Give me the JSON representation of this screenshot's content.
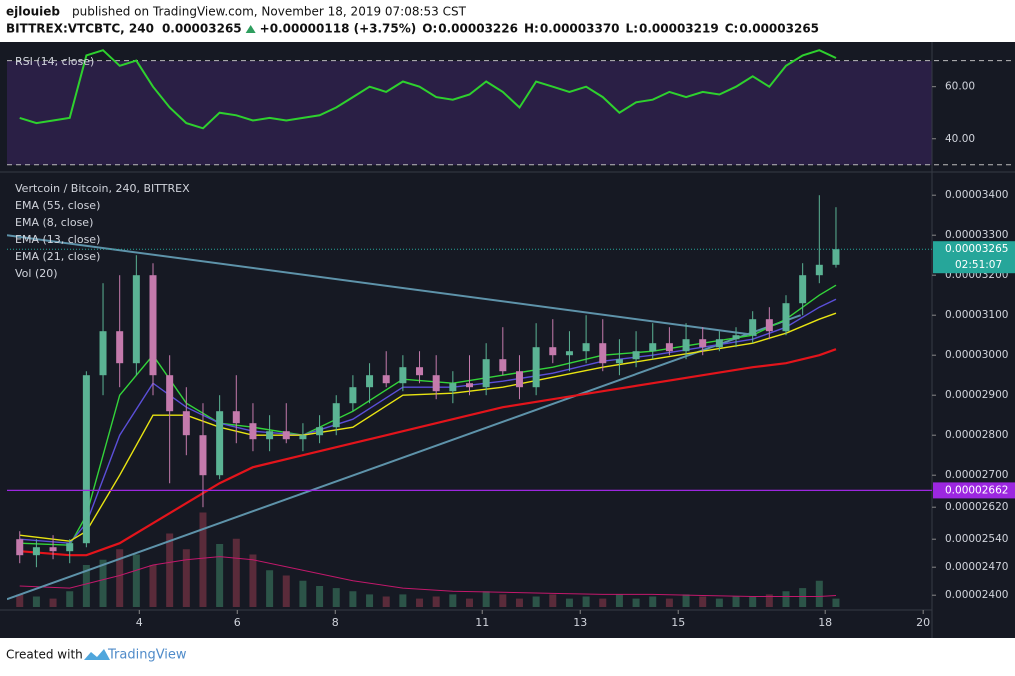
{
  "header": {
    "author": "ejlouieb",
    "published": "published on TradingView.com, November 18, 2019 07:08:53 CST",
    "symbol": "BITTREX:VTCBTC, 240",
    "last": "0.00003265",
    "change": "+0.00000118 (+3.75%)",
    "ohlc": [
      {
        "label": "O:",
        "value": "0.00003226"
      },
      {
        "label": "H:",
        "value": "0.00003370"
      },
      {
        "label": "L:",
        "value": "0.00003219"
      },
      {
        "label": "C:",
        "value": "0.00003265"
      }
    ]
  },
  "footer": {
    "text": "Created with",
    "brand": "TradingView"
  },
  "chart_data": {
    "type": "candlestick",
    "title": "Vertcoin / Bitcoin, 240, BITTREX",
    "volume_label": "Vol (20)",
    "xlim": [
      1.3,
      20.18
    ],
    "xticks": [
      4,
      6,
      8,
      11,
      13,
      15,
      18,
      20
    ],
    "ylim": [
      2.363e-05,
      3.458e-05
    ],
    "yticks": [
      {
        "value": 3.4e-05,
        "label": "0.00003400"
      },
      {
        "value": 3.3e-05,
        "label": "0.00003300"
      },
      {
        "value": 3.2e-05,
        "label": "0.00003200"
      },
      {
        "value": 3.1e-05,
        "label": "0.00003100"
      },
      {
        "value": 3e-05,
        "label": "0.00003000"
      },
      {
        "value": 2.9e-05,
        "label": "0.00002900"
      },
      {
        "value": 2.8e-05,
        "label": "0.00002800"
      },
      {
        "value": 2.7e-05,
        "label": "0.00002700"
      },
      {
        "value": 2.62e-05,
        "label": "0.00002620"
      },
      {
        "value": 2.54e-05,
        "label": "0.00002540"
      },
      {
        "value": 2.47e-05,
        "label": "0.00002470"
      },
      {
        "value": 2.4e-05,
        "label": "0.00002400"
      }
    ],
    "up_color": "#5bb394",
    "down_color": "#c47aac",
    "candles": {
      "x": [
        1.56,
        1.9,
        2.24,
        2.58,
        2.92,
        3.26,
        3.6,
        3.94,
        4.28,
        4.62,
        4.96,
        5.3,
        5.64,
        5.98,
        6.32,
        6.66,
        7,
        7.34,
        7.68,
        8.02,
        8.36,
        8.7,
        9.04,
        9.38,
        9.72,
        10.06,
        10.4,
        10.74,
        11.08,
        11.42,
        11.76,
        12.1,
        12.44,
        12.78,
        13.12,
        13.46,
        13.8,
        14.14,
        14.48,
        14.82,
        15.16,
        15.5,
        15.84,
        16.18,
        16.52,
        16.86,
        17.2,
        17.54,
        17.88,
        18.22
      ],
      "open": [
        2.54e-05,
        2.5e-05,
        2.52e-05,
        2.51e-05,
        2.53e-05,
        2.95e-05,
        3.06e-05,
        2.98e-05,
        3.2e-05,
        2.95e-05,
        2.86e-05,
        2.8e-05,
        2.7e-05,
        2.86e-05,
        2.83e-05,
        2.79e-05,
        2.81e-05,
        2.79e-05,
        2.8e-05,
        2.82e-05,
        2.88e-05,
        2.92e-05,
        2.95e-05,
        2.93e-05,
        2.97e-05,
        2.95e-05,
        2.91e-05,
        2.93e-05,
        2.92e-05,
        2.99e-05,
        2.96e-05,
        2.92e-05,
        3.02e-05,
        3e-05,
        3.01e-05,
        3.03e-05,
        2.98e-05,
        2.99e-05,
        3.01e-05,
        3.03e-05,
        3.01e-05,
        3.04e-05,
        3.02e-05,
        3.04e-05,
        3.05e-05,
        3.09e-05,
        3.06e-05,
        3.13e-05,
        3.2e-05,
        3.226e-05
      ],
      "high": [
        2.56e-05,
        2.54e-05,
        2.55e-05,
        2.54e-05,
        2.96e-05,
        3.18e-05,
        3.2e-05,
        3.25e-05,
        3.23e-05,
        3e-05,
        2.92e-05,
        2.88e-05,
        2.9e-05,
        2.95e-05,
        2.88e-05,
        2.85e-05,
        2.88e-05,
        2.83e-05,
        2.85e-05,
        2.9e-05,
        2.95e-05,
        2.98e-05,
        3.01e-05,
        3e-05,
        3.01e-05,
        3e-05,
        2.96e-05,
        3e-05,
        3.03e-05,
        3.07e-05,
        3e-05,
        3.08e-05,
        3.09e-05,
        3.06e-05,
        3.1e-05,
        3.09e-05,
        3.04e-05,
        3.06e-05,
        3.08e-05,
        3.07e-05,
        3.08e-05,
        3.07e-05,
        3.06e-05,
        3.07e-05,
        3.11e-05,
        3.12e-05,
        3.15e-05,
        3.23e-05,
        3.4e-05,
        3.37e-05
      ],
      "low": [
        2.48e-05,
        2.47e-05,
        2.49e-05,
        2.48e-05,
        2.52e-05,
        2.9e-05,
        2.92e-05,
        2.95e-05,
        2.9e-05,
        2.68e-05,
        2.75e-05,
        2.62e-05,
        2.69e-05,
        2.78e-05,
        2.76e-05,
        2.76e-05,
        2.78e-05,
        2.76e-05,
        2.78e-05,
        2.8e-05,
        2.86e-05,
        2.88e-05,
        2.92e-05,
        2.91e-05,
        2.93e-05,
        2.89e-05,
        2.88e-05,
        2.9e-05,
        2.9e-05,
        2.95e-05,
        2.89e-05,
        2.9e-05,
        2.98e-05,
        2.96e-05,
        2.98e-05,
        2.96e-05,
        2.95e-05,
        2.97e-05,
        2.99e-05,
        3e-05,
        2.99e-05,
        3e-05,
        3.01e-05,
        3.02e-05,
        3.03e-05,
        3.04e-05,
        3.05e-05,
        3.1e-05,
        3.18e-05,
        3.219e-05
      ],
      "close": [
        2.5e-05,
        2.52e-05,
        2.51e-05,
        2.53e-05,
        2.95e-05,
        3.06e-05,
        2.98e-05,
        3.2e-05,
        2.95e-05,
        2.86e-05,
        2.8e-05,
        2.7e-05,
        2.86e-05,
        2.83e-05,
        2.79e-05,
        2.81e-05,
        2.79e-05,
        2.8e-05,
        2.82e-05,
        2.88e-05,
        2.92e-05,
        2.95e-05,
        2.93e-05,
        2.97e-05,
        2.95e-05,
        2.91e-05,
        2.93e-05,
        2.92e-05,
        2.99e-05,
        2.96e-05,
        2.92e-05,
        3.02e-05,
        3e-05,
        3.01e-05,
        3.03e-05,
        2.98e-05,
        2.99e-05,
        3.01e-05,
        3.03e-05,
        3.01e-05,
        3.04e-05,
        3.02e-05,
        3.04e-05,
        3.05e-05,
        3.09e-05,
        3.06e-05,
        3.13e-05,
        3.2e-05,
        3.226e-05,
        3.265e-05
      ],
      "volume": [
        12,
        10,
        8,
        15,
        40,
        45,
        55,
        50,
        40,
        70,
        55,
        90,
        60,
        65,
        50,
        35,
        30,
        25,
        20,
        18,
        15,
        12,
        10,
        12,
        8,
        10,
        12,
        8,
        15,
        12,
        8,
        10,
        12,
        8,
        10,
        8,
        12,
        8,
        10,
        8,
        12,
        10,
        8,
        10,
        10,
        12,
        15,
        18,
        25,
        8
      ]
    },
    "volume_ylim": [
      0,
      100
    ],
    "volume_up_color": "#2c5448",
    "volume_down_color": "#5a2b3a",
    "ema_x": [
      1.56,
      2.58,
      2.92,
      3.6,
      4.28,
      4.96,
      5.64,
      6.32,
      7.34,
      8.36,
      9.38,
      10.4,
      11.42,
      12.44,
      13.46,
      14.48,
      15.5,
      16.52,
      17.2,
      17.88,
      18.22
    ],
    "series": [
      {
        "name": "EMA (55, close)",
        "color": "#e3141b",
        "values": [
          2.51e-05,
          2.5e-05,
          2.5e-05,
          2.53e-05,
          2.58e-05,
          2.63e-05,
          2.68e-05,
          2.72e-05,
          2.75e-05,
          2.78e-05,
          2.81e-05,
          2.84e-05,
          2.87e-05,
          2.89e-05,
          2.91e-05,
          2.93e-05,
          2.95e-05,
          2.97e-05,
          2.98e-05,
          3e-05,
          3.015e-05
        ]
      },
      {
        "name": "EMA (8, close)",
        "color": "#33d43a",
        "values": [
          2.53e-05,
          2.525e-05,
          2.6e-05,
          2.9e-05,
          3e-05,
          2.88e-05,
          2.83e-05,
          2.82e-05,
          2.8e-05,
          2.86e-05,
          2.94e-05,
          2.93e-05,
          2.95e-05,
          2.97e-05,
          3e-05,
          3.01e-05,
          3.03e-05,
          3.05e-05,
          3.09e-05,
          3.15e-05,
          3.175e-05
        ]
      },
      {
        "name": "EMA (13, close)",
        "color": "#5b4fd8",
        "values": [
          2.54e-05,
          2.53e-05,
          2.58e-05,
          2.8e-05,
          2.93e-05,
          2.87e-05,
          2.83e-05,
          2.81e-05,
          2.8e-05,
          2.84e-05,
          2.92e-05,
          2.92e-05,
          2.935e-05,
          2.955e-05,
          2.985e-05,
          3e-05,
          3.02e-05,
          3.04e-05,
          3.07e-05,
          3.12e-05,
          3.14e-05
        ]
      },
      {
        "name": "EMA (21, close)",
        "color": "#e8e412",
        "values": [
          2.55e-05,
          2.535e-05,
          2.56e-05,
          2.7e-05,
          2.85e-05,
          2.85e-05,
          2.82e-05,
          2.8e-05,
          2.8e-05,
          2.82e-05,
          2.9e-05,
          2.905e-05,
          2.92e-05,
          2.945e-05,
          2.97e-05,
          2.99e-05,
          3.01e-05,
          3.03e-05,
          3.055e-05,
          3.09e-05,
          3.105e-05
        ]
      }
    ],
    "volume_ma": {
      "color": "#c2186b",
      "values": [
        20,
        18,
        22,
        30,
        40,
        45,
        48,
        45,
        35,
        25,
        18,
        15,
        14,
        13,
        12,
        12,
        11,
        10,
        10,
        10,
        11
      ]
    },
    "trendlines": {
      "color": "#5e93aa",
      "lines": [
        {
          "x": [
            1.3,
            16.6
          ],
          "values": [
            3.3e-05,
            3.05e-05
          ]
        },
        {
          "x": [
            1.3,
            17.5
          ],
          "values": [
            2.39e-05,
            3.1e-05
          ]
        }
      ]
    },
    "last_price": {
      "value": 3.265e-05,
      "label": "0.00003265",
      "color": "#26a69a",
      "countdown": "02:51:07"
    },
    "level": {
      "value": 2.662e-05,
      "label": "0.00002662",
      "color": "#9c27e0"
    },
    "rsi": {
      "label": "RSI (14, close)",
      "color": "#2ed12e",
      "ylim": [
        28,
        76
      ],
      "yticks": [
        {
          "value": 60,
          "label": "60.00"
        },
        {
          "value": 40,
          "label": "40.00"
        }
      ],
      "levels": [
        70,
        30
      ],
      "values": [
        48,
        46,
        47,
        48,
        72,
        74,
        68,
        70,
        60,
        52,
        46,
        44,
        50,
        49,
        47,
        48,
        47,
        48,
        49,
        52,
        56,
        60,
        58,
        62,
        60,
        56,
        55,
        57,
        62,
        58,
        52,
        62,
        60,
        58,
        60,
        56,
        50,
        54,
        55,
        58,
        56,
        58,
        57,
        60,
        64,
        60,
        68,
        72,
        74,
        71
      ]
    }
  }
}
